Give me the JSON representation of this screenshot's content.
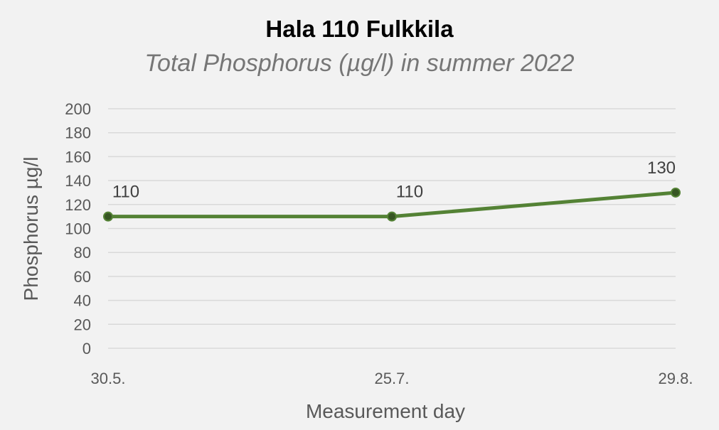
{
  "chart_data": {
    "type": "line",
    "title": "Hala 110 Fulkkila",
    "subtitle": "Total Phosphorus (µg/l) in summer 2022",
    "xlabel": "Measurement day",
    "ylabel": "Phosphorus µg/l",
    "categories": [
      "30.5.",
      "25.7.",
      "29.8."
    ],
    "series": [
      {
        "values": [
          110,
          110,
          130
        ],
        "data_labels": [
          "110",
          "110",
          "130"
        ]
      }
    ],
    "ylim": [
      0,
      200
    ],
    "yticks": [
      "0",
      "20",
      "40",
      "60",
      "80",
      "100",
      "120",
      "140",
      "160",
      "180",
      "200"
    ],
    "grid": true,
    "legend": "none",
    "colors": {
      "line": "#548235",
      "marker": "#375623",
      "grid": "#d9d9d9",
      "background": "#f2f2f2"
    }
  }
}
